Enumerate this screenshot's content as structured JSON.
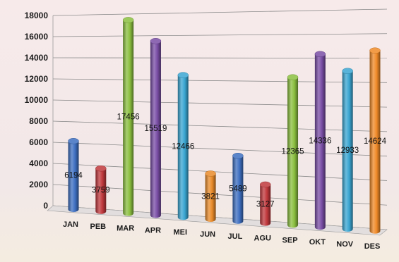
{
  "chart_data": {
    "type": "bar",
    "title": "",
    "xlabel": "",
    "ylabel": "",
    "categories": [
      "JAN",
      "PEB",
      "MAR",
      "APR",
      "MEI",
      "JUN",
      "JUL",
      "AGU",
      "SEP",
      "OKT",
      "NOV",
      "DES"
    ],
    "values": [
      6194,
      3759,
      17456,
      15519,
      12466,
      3821,
      5489,
      3127,
      12365,
      14336,
      12933,
      14624
    ],
    "ylim": [
      0,
      18000
    ],
    "yticks": [
      "0",
      "2000",
      "4000",
      "6000",
      "8000",
      "10000",
      "12000",
      "14000",
      "16000",
      "18000"
    ],
    "grid": true,
    "legend": "none",
    "style": "3d-cylinder",
    "colors": [
      "#3e6fc1",
      "#c0383c",
      "#8bbf3f",
      "#7a4ea6",
      "#3aa6d2",
      "#e98b2a",
      "#3e6fc1",
      "#c0383c",
      "#8bbf3f",
      "#7a4ea6",
      "#3aa6d2",
      "#f08a28"
    ],
    "background_color": "#f2e8e8"
  }
}
